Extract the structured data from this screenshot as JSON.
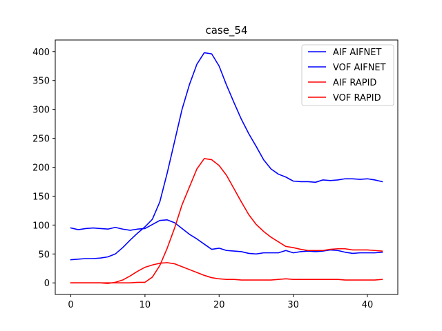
{
  "chart_data": {
    "type": "line",
    "title": "case_54",
    "xlabel": "",
    "ylabel": "",
    "xlim": [
      -2.1,
      44.1
    ],
    "ylim": [
      -20,
      420
    ],
    "xticks": [
      0,
      10,
      20,
      30,
      40
    ],
    "yticks": [
      0,
      50,
      100,
      150,
      200,
      250,
      300,
      350,
      400
    ],
    "grid": false,
    "legend_position": "top-right",
    "x": [
      0,
      1,
      2,
      3,
      4,
      5,
      6,
      7,
      8,
      9,
      10,
      11,
      12,
      13,
      14,
      15,
      16,
      17,
      18,
      19,
      20,
      21,
      22,
      23,
      24,
      25,
      26,
      27,
      28,
      29,
      30,
      31,
      32,
      33,
      34,
      35,
      36,
      37,
      38,
      39,
      40,
      41,
      42
    ],
    "series": [
      {
        "name": "AIF AIFNET",
        "color": "#0000ff",
        "values": [
          40,
          41,
          42,
          42,
          43,
          45,
          50,
          61,
          74,
          86,
          97,
          110,
          140,
          190,
          245,
          300,
          343,
          378,
          398,
          396,
          375,
          342,
          312,
          283,
          258,
          236,
          213,
          197,
          188,
          183,
          176,
          175,
          175,
          174,
          178,
          177,
          178,
          180,
          180,
          179,
          180,
          178,
          175
        ]
      },
      {
        "name": "VOF AIFNET",
        "color": "#0000ff",
        "values": [
          95,
          92,
          94,
          95,
          94,
          93,
          96,
          93,
          91,
          93,
          94,
          101,
          108,
          109,
          104,
          94,
          84,
          76,
          67,
          58,
          60,
          56,
          55,
          54,
          51,
          50,
          52,
          52,
          52,
          56,
          52,
          54,
          55,
          54,
          55,
          57,
          56,
          53,
          51,
          52,
          52,
          52,
          53
        ]
      },
      {
        "name": "AIF RAPID",
        "color": "#ff0000",
        "values": [
          0,
          0,
          0,
          0,
          0,
          0,
          0,
          0,
          0,
          1,
          1,
          10,
          30,
          60,
          95,
          135,
          166,
          197,
          215,
          213,
          203,
          186,
          163,
          140,
          118,
          101,
          89,
          79,
          71,
          63,
          61,
          58,
          56,
          56,
          56,
          58,
          59,
          59,
          57,
          57,
          57,
          56,
          55
        ]
      },
      {
        "name": "VOF RAPID",
        "color": "#ff0000",
        "values": [
          0,
          0,
          0,
          0,
          0,
          -1,
          1,
          5,
          12,
          20,
          27,
          31,
          34,
          35,
          33,
          28,
          23,
          18,
          13,
          9,
          7,
          6,
          6,
          5,
          5,
          5,
          5,
          5,
          6,
          7,
          6,
          6,
          6,
          6,
          6,
          6,
          6,
          5,
          5,
          5,
          5,
          5,
          6
        ]
      }
    ]
  }
}
